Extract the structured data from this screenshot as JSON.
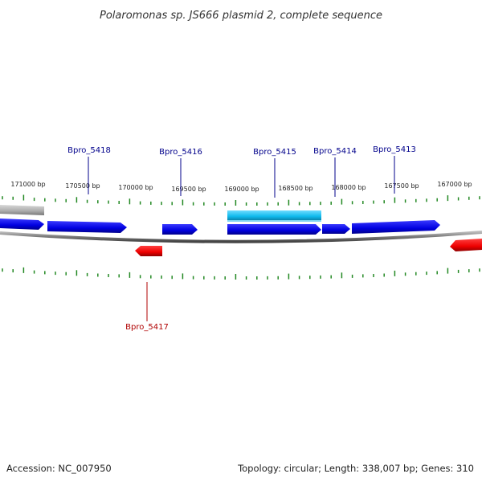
{
  "title": "Polaromonas sp. JS666 plasmid 2, complete sequence",
  "accession": "Accession: NC_007950",
  "summary": "Topology: circular; Length: 338,007 bp; Genes: 310",
  "colors": {
    "forward_gene": "#0000e0",
    "reverse_gene": "#ee0000",
    "highlight_gene": "#11bbee",
    "other_feature": "#aaaaaa",
    "backbone": "#777777",
    "tick": "#228822",
    "forward_label": "#00008b",
    "reverse_label": "#b00000"
  },
  "scale_labels": [
    "171000 bp",
    "170500 bp",
    "170000 bp",
    "169500 bp",
    "169000 bp",
    "168500 bp",
    "168000 bp",
    "167500 bp",
    "167000 bp"
  ],
  "gene_labels": [
    {
      "name": "Bpro_5418",
      "strand": "forward"
    },
    {
      "name": "Bpro_5416",
      "strand": "forward"
    },
    {
      "name": "Bpro_5415",
      "strand": "forward"
    },
    {
      "name": "Bpro_5414",
      "strand": "forward"
    },
    {
      "name": "Bpro_5413",
      "strand": "forward"
    },
    {
      "name": "Bpro_5417",
      "strand": "reverse"
    }
  ]
}
